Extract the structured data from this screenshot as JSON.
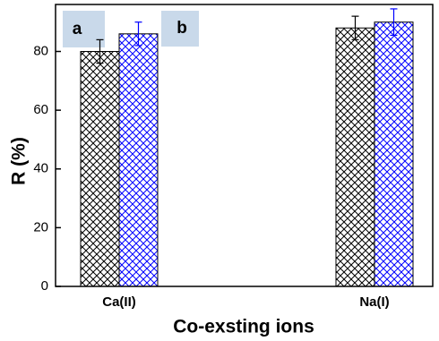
{
  "chart_data": {
    "type": "bar",
    "y_label": "R (%)",
    "x_label": "Co-exsting ions",
    "categories": [
      "Ca(II)",
      "Na(I)"
    ],
    "series": [
      {
        "color": "#000000",
        "values": [
          80,
          88
        ],
        "errors": [
          4,
          4
        ]
      },
      {
        "color": "#0000ff",
        "values": [
          86,
          90
        ],
        "errors": [
          4,
          4.5
        ]
      }
    ],
    "annotations": [
      "a",
      "b"
    ],
    "ylim": [
      0,
      96
    ],
    "yticks": [
      0,
      20,
      40,
      60,
      80
    ]
  }
}
